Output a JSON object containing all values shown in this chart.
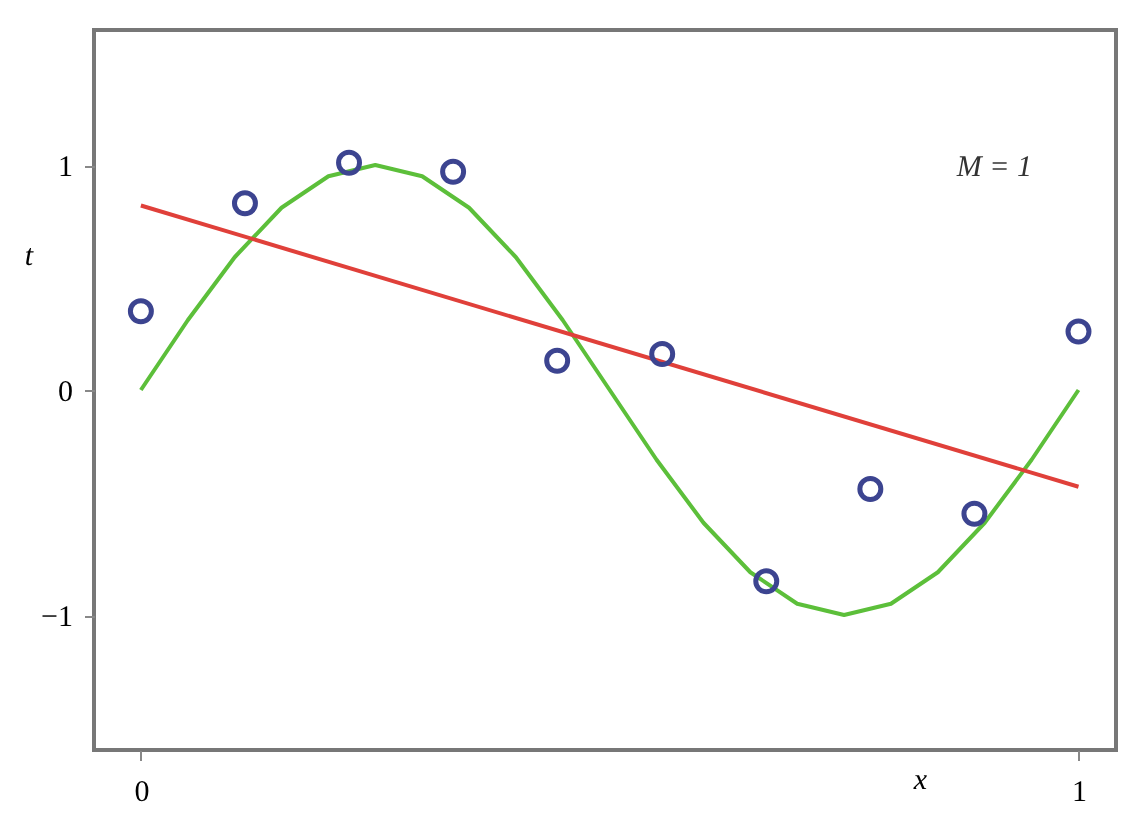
{
  "chart_data": {
    "type": "scatter",
    "xlabel": "x",
    "ylabel": "t",
    "annotations": [
      "M = 1"
    ],
    "xlim": [
      -0.05,
      1.04
    ],
    "ylim": [
      -1.6,
      1.6
    ],
    "xticks": [
      0,
      1
    ],
    "yticks": [
      -1,
      0,
      1
    ],
    "grid": false,
    "series": [
      {
        "type": "line",
        "color": "#5cbf3a",
        "x": [
          0,
          0.05,
          0.1,
          0.15,
          0.2,
          0.25,
          0.3,
          0.35,
          0.4,
          0.45,
          0.5,
          0.55,
          0.6,
          0.65,
          0.7,
          0.75,
          0.8,
          0.85,
          0.9,
          0.95,
          1
        ],
        "values": [
          0,
          0.31,
          0.59,
          0.81,
          0.95,
          1,
          0.95,
          0.81,
          0.59,
          0.31,
          0,
          -0.31,
          -0.59,
          -0.81,
          -0.95,
          -1,
          -0.95,
          -0.81,
          -0.59,
          -0.31,
          0
        ]
      },
      {
        "type": "line",
        "color": "#e0403a",
        "x": [
          0,
          1
        ],
        "values": [
          0.82,
          -0.43
        ]
      },
      {
        "marker": "circle",
        "color": "#3c4490",
        "x": [
          0,
          0.111,
          0.222,
          0.333,
          0.444,
          0.556,
          0.667,
          0.778,
          0.889,
          1
        ],
        "values": [
          0.35,
          0.83,
          1.01,
          0.97,
          0.13,
          0.16,
          -0.85,
          -0.44,
          -0.55,
          0.26
        ]
      }
    ]
  }
}
